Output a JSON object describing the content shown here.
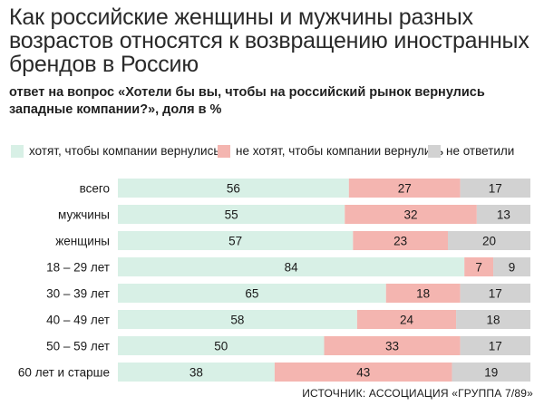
{
  "header": {
    "title": "Как российские женщины и мужчины разных возрастов относятся к возвращению иностранных брендов в Россию",
    "subtitle": "ответ на вопрос «Хотели бы вы, чтобы на российский рынок вернулись западные компании?», доля в %"
  },
  "legend": {
    "want": "хотят, чтобы компании вернулись",
    "dont_want": "не хотят, чтобы компании вернулись",
    "no_answer": "не ответили"
  },
  "colors": {
    "want": "#d8f0e6",
    "dont_want": "#f4b5b0",
    "no_answer": "#d2d2d2"
  },
  "chart_data": {
    "type": "bar",
    "orientation": "horizontal-stacked",
    "categories": [
      "всего",
      "мужчины",
      "женщины",
      "18 – 29 лет",
      "30 – 39 лет",
      "40 – 49 лет",
      "50 – 59 лет",
      "60 лет и старше"
    ],
    "series": [
      {
        "name": "хотят, чтобы компании вернулись",
        "values": [
          56,
          55,
          57,
          84,
          65,
          58,
          50,
          38
        ]
      },
      {
        "name": "не хотят, чтобы компании вернулись",
        "values": [
          27,
          32,
          23,
          7,
          18,
          24,
          33,
          43
        ]
      },
      {
        "name": "не ответили",
        "values": [
          17,
          13,
          20,
          9,
          17,
          18,
          17,
          19
        ]
      }
    ],
    "legend_position": "top",
    "grid": false
  },
  "source": "ИСТОЧНИК: АССОЦИАЦИЯ «ГРУППА 7/89»"
}
